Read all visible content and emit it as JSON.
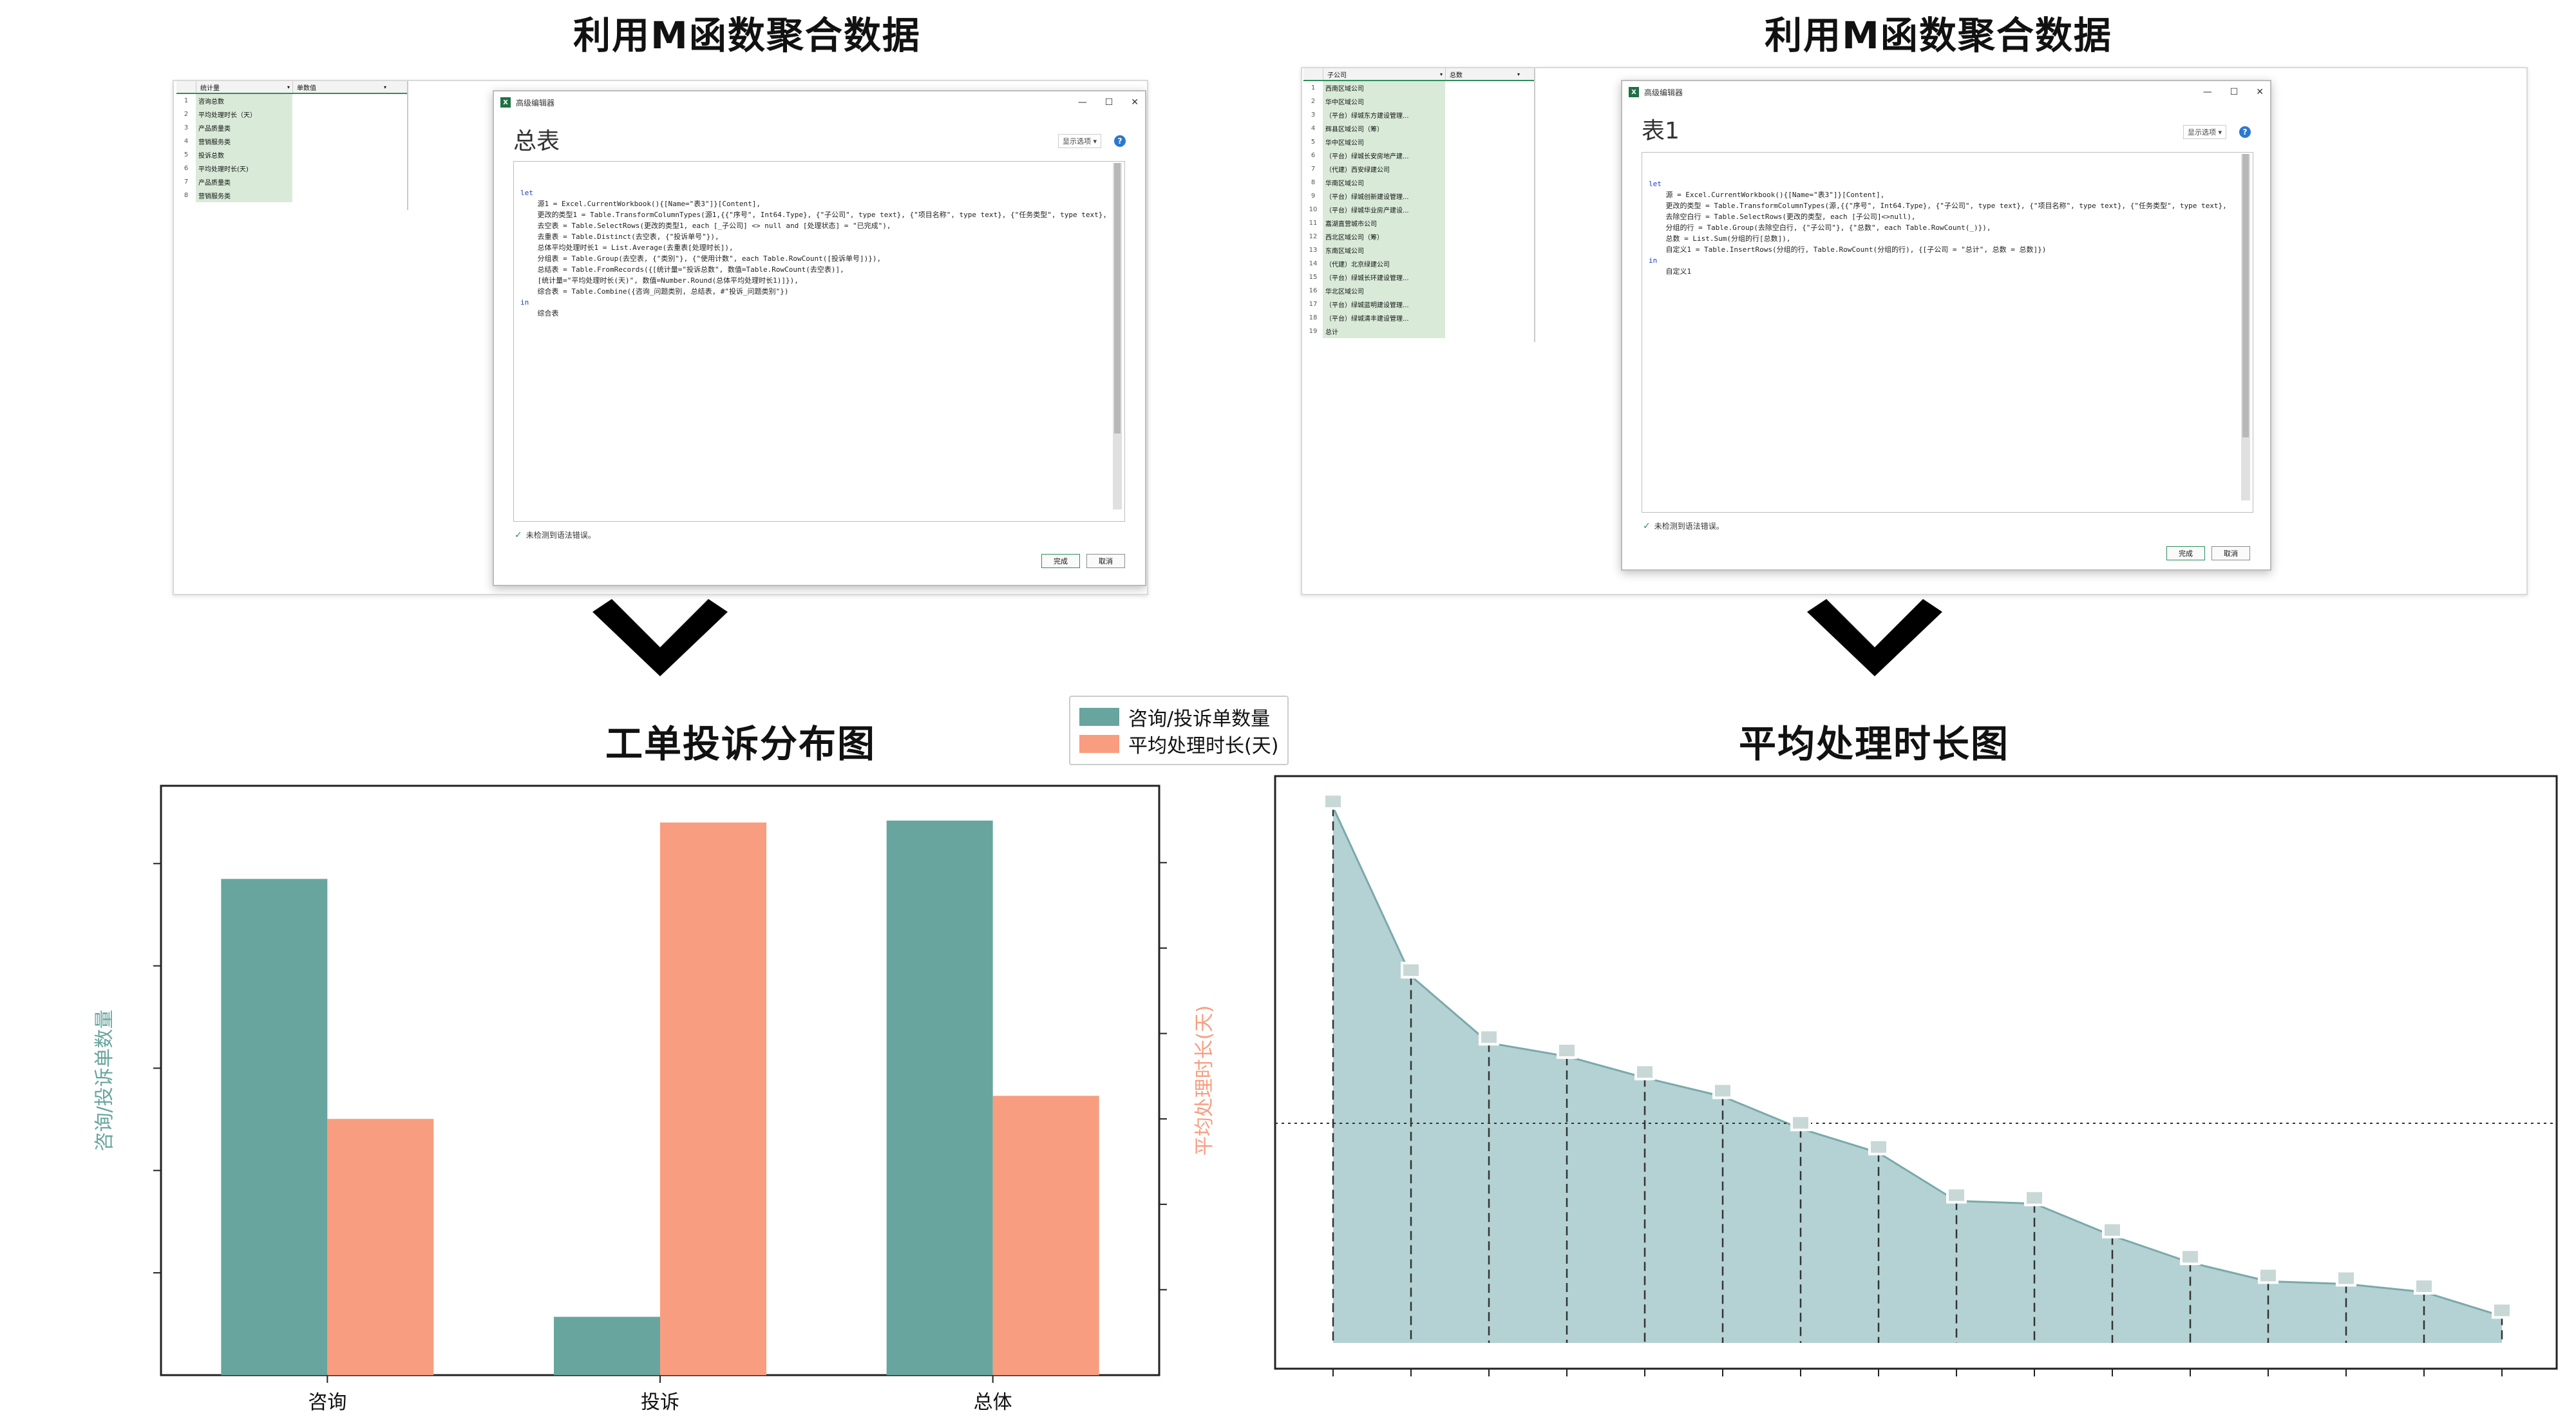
{
  "left_panel": {
    "title": "利用M函数聚合数据",
    "excel": {
      "col1_header": "统计量",
      "col2_header": "单数值",
      "rows": [
        "咨询总数",
        "平均处理时长（天）",
        "产品质量类",
        "营销服务类",
        "投诉总数",
        "平均处理时长(天)",
        "产品质量类",
        "营销服务类"
      ]
    },
    "editor": {
      "window_title": "高级编辑器",
      "query_name": "总表",
      "display_options": "显示选项",
      "help": "?",
      "code": [
        {
          "t": "let",
          "kw": true
        },
        {
          "t": "    源1 = Excel.CurrentWorkbook(){[Name=\"表3\"]}[Content],",
          "kw": false
        },
        {
          "t": "    更改的类型1 = Table.TransformColumnTypes(源1,{{\"序号\", Int64.Type}, {\"子公司\", type text}, {\"项目名称\", type text}, {\"任务类型\", type text},",
          "kw": false
        },
        {
          "t": "    去空表 = Table.SelectRows(更改的类型1, each [_子公司] <> null and [处理状态] = \"已完成\"),",
          "kw": false
        },
        {
          "t": "    去重表 = Table.Distinct(去空表, {\"投诉单号\"}),",
          "kw": false
        },
        {
          "t": "    总体平均处理时长1 = List.Average(去重表[处理时长]),",
          "kw": false
        },
        {
          "t": "    分组表 = Table.Group(去空表, {\"类别\"}, {\"使用计数\", each Table.RowCount([投诉单号])}),",
          "kw": false
        },
        {
          "t": "    总结表 = Table.FromRecords({[统计量=\"投诉总数\", 数值=Table.RowCount(去空表)],",
          "kw": false
        },
        {
          "t": "    [统计量=\"平均处理时长(天)\", 数值=Number.Round(总体平均处理时长1)]}),",
          "kw": false
        },
        {
          "t": "    综合表 = Table.Combine({咨询_问题类别, 总结表, #\"投诉_问题类别\"})",
          "kw": false
        },
        {
          "t": "in",
          "kw": true
        },
        {
          "t": "    综合表",
          "kw": false
        }
      ],
      "status": "未检测到语法错误。",
      "done_btn": "完成",
      "cancel_btn": "取消"
    }
  },
  "right_panel": {
    "title": "利用M函数聚合数据",
    "excel": {
      "col1_header": "子公司",
      "col2_header": "总数",
      "rows": [
        "西南区域公司",
        "华中区域公司",
        "（平台）绿城东方建设管理...",
        "辉县区域公司（筹）",
        "华中区域公司",
        "（平台）绿城长安房地产建...",
        "（代建）西安绿建公司",
        "华南区域公司",
        "（平台）绿城创新建设管理...",
        "（平台）绿城华业房产建设...",
        "嘉湖直营城市公司",
        "西北区域公司（筹）",
        "东南区域公司",
        "（代建）北京绿建公司",
        "（平台）绿城长环建设管理...",
        "华北区域公司",
        "（平台）绿城蓝明建设管理...",
        "（平台）绿城清丰建设管理...",
        "总计"
      ]
    },
    "editor": {
      "window_title": "高级编辑器",
      "query_name": "表1",
      "display_options": "显示选项",
      "help": "?",
      "code": [
        {
          "t": "let",
          "kw": true
        },
        {
          "t": "    源 = Excel.CurrentWorkbook(){[Name=\"表3\"]}[Content],",
          "kw": false
        },
        {
          "t": "    更改的类型 = Table.TransformColumnTypes(源,{{\"序号\", Int64.Type}, {\"子公司\", type text}, {\"项目名称\", type text}, {\"任务类型\", type text},",
          "kw": false
        },
        {
          "t": "    去除空白行 = Table.SelectRows(更改的类型, each [子公司]<>null),",
          "kw": false
        },
        {
          "t": "    分组的行 = Table.Group(去除空白行, {\"子公司\"}, {\"总数\", each Table.RowCount(_)}),",
          "kw": false
        },
        {
          "t": "    总数 = List.Sum(分组的行[总数]),",
          "kw": false
        },
        {
          "t": "    自定义1 = Table.InsertRows(分组的行, Table.RowCount(分组的行), {[子公司 = \"总计\", 总数 = 总数]})",
          "kw": false
        },
        {
          "t": "in",
          "kw": true
        },
        {
          "t": "    自定义1",
          "kw": false
        }
      ],
      "status": "未检测到语法错误。",
      "done_btn": "完成",
      "cancel_btn": "取消"
    }
  },
  "colors": {
    "teal": "#68a59f",
    "salmon": "#f89d80",
    "area_fill": "#b4d2d3",
    "area_line": "#7aa9ab"
  },
  "chart_data": [
    {
      "type": "bar",
      "title": "工单投诉分布图",
      "categories": [
        "咨询",
        "投诉",
        "总体"
      ],
      "series": [
        {
          "name": "咨询/投诉单数量",
          "axis": "left",
          "color": "#68a59f",
          "values": [
            48.5,
            5.7,
            54.2
          ]
        },
        {
          "name": "平均处理时长(天)",
          "axis": "right",
          "color": "#f89d80",
          "values": [
            30.0,
            64.7,
            32.7
          ]
        }
      ],
      "ylabel": "咨询/投诉单数量",
      "y2label": "平均处理时长(天)",
      "ylim": [
        0,
        57.6
      ],
      "y2lim": [
        0,
        69
      ],
      "legend_position": "top-right"
    },
    {
      "type": "area",
      "title": "平均处理时长图",
      "x": [
        1,
        2,
        3,
        4,
        5,
        6,
        7,
        8,
        9,
        10,
        11,
        12,
        13,
        14,
        15,
        16
      ],
      "values": [
        100,
        68.5,
        56,
        53.5,
        49.5,
        46,
        40,
        35.5,
        26.5,
        26,
        20,
        15,
        11.5,
        11,
        9.5,
        5
      ],
      "ylim": [
        0,
        104
      ],
      "reference_line": 41,
      "grid": false
    }
  ]
}
